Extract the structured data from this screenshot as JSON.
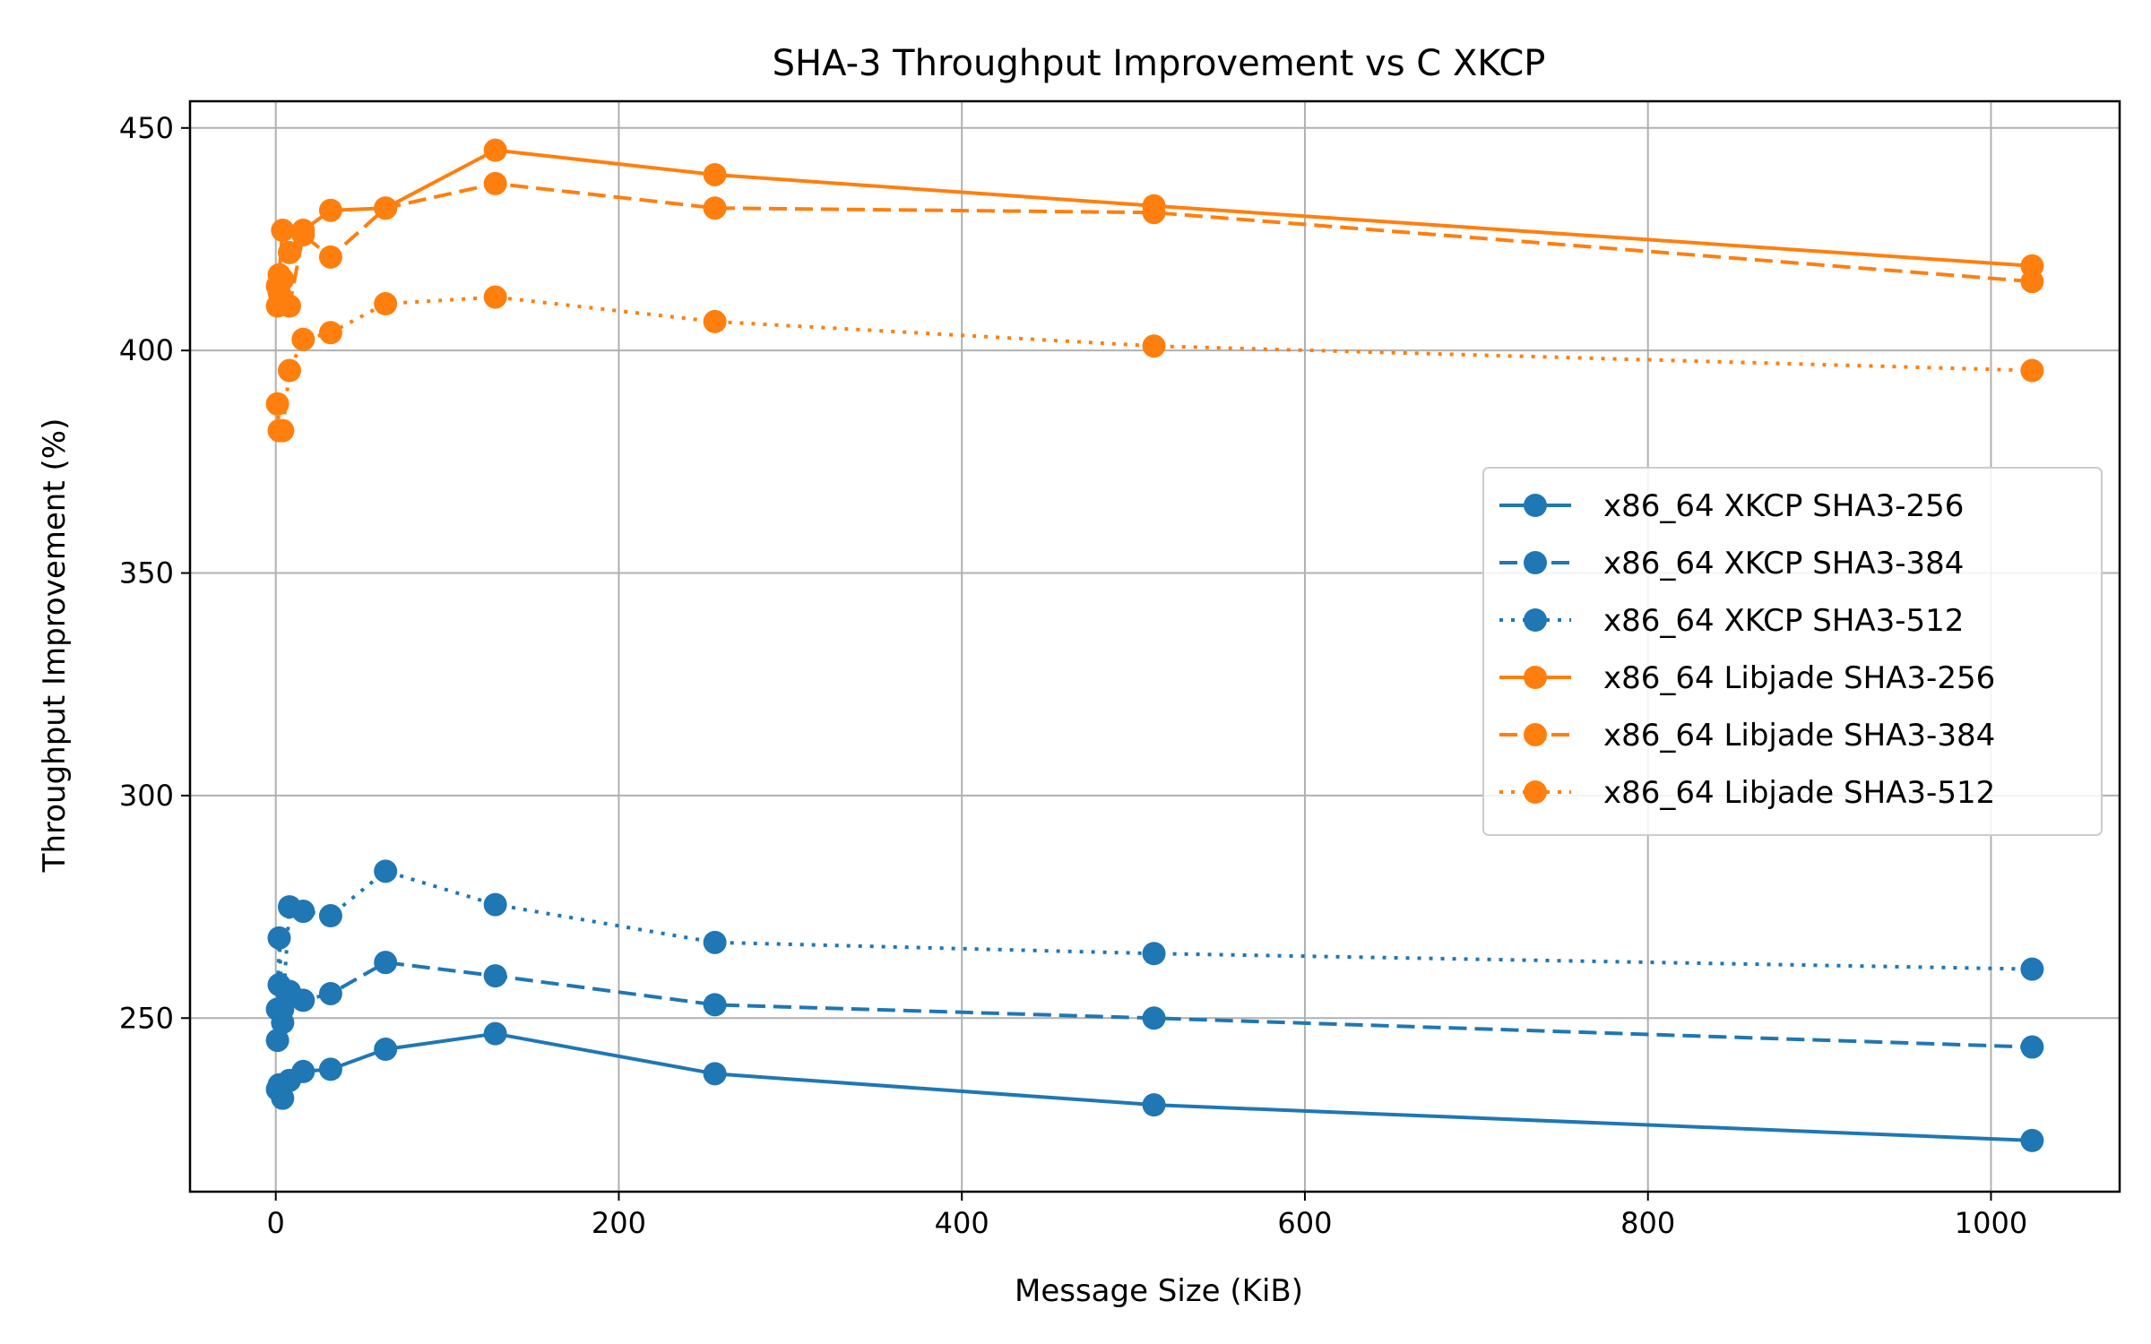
{
  "chart_data": {
    "type": "line",
    "title": "SHA-3 Throughput Improvement vs C XKCP",
    "xlabel": "Message Size (KiB)",
    "ylabel": "Throughput Improvement (%)",
    "xlim": [
      -50,
      1075
    ],
    "ylim": [
      211,
      456
    ],
    "xticks": [
      0,
      200,
      400,
      600,
      800,
      1000
    ],
    "yticks": [
      250,
      300,
      350,
      400,
      450
    ],
    "grid": true,
    "legend_position": "center-right",
    "x": [
      1,
      2,
      4,
      8,
      16,
      32,
      64,
      128,
      256,
      512,
      1024
    ],
    "series": [
      {
        "name": "x86_64 XKCP SHA3-256",
        "color": "#1f77b4",
        "linestyle": "solid",
        "values": [
          234,
          235,
          232,
          236,
          238,
          238.5,
          243,
          246.5,
          237.5,
          230.5,
          222.5
        ]
      },
      {
        "name": "x86_64 XKCP SHA3-384",
        "color": "#1f77b4",
        "linestyle": "dashed",
        "values": [
          245,
          257.5,
          249,
          256,
          254,
          255.5,
          262.5,
          259.5,
          253,
          250,
          243.5
        ]
      },
      {
        "name": "x86_64 XKCP SHA3-512",
        "color": "#1f77b4",
        "linestyle": "dotted",
        "values": [
          252,
          268,
          252,
          275,
          274,
          273,
          283,
          275.5,
          267,
          264.5,
          261
        ]
      },
      {
        "name": "x86_64 Libjade SHA3-256",
        "color": "#ff7f0e",
        "linestyle": "solid",
        "values": [
          414.5,
          417,
          427,
          422,
          427,
          431.5,
          432,
          445,
          439.5,
          432.5,
          419
        ]
      },
      {
        "name": "x86_64 Libjade SHA3-384",
        "color": "#ff7f0e",
        "linestyle": "dashed",
        "values": [
          410,
          413,
          416,
          410,
          426,
          421,
          432,
          437.5,
          432,
          431,
          415.5
        ]
      },
      {
        "name": "x86_64 Libjade SHA3-512",
        "color": "#ff7f0e",
        "linestyle": "dotted",
        "values": [
          388,
          382,
          382,
          395.5,
          402.5,
          404,
          410.5,
          412,
          406.5,
          401,
          395.5
        ]
      }
    ]
  }
}
